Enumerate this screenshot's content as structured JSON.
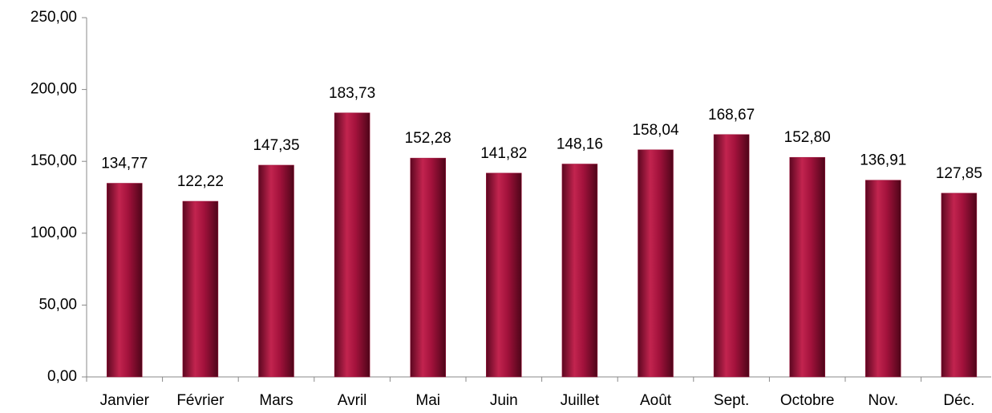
{
  "chart_data": {
    "type": "bar",
    "categories": [
      "Janvier",
      "Février",
      "Mars",
      "Avril",
      "Mai",
      "Juin",
      "Juillet",
      "Août",
      "Sept.",
      "Octobre",
      "Nov.",
      "Déc."
    ],
    "values": [
      134.77,
      122.22,
      147.35,
      183.73,
      152.28,
      141.82,
      148.16,
      158.04,
      168.67,
      152.8,
      136.91,
      127.85
    ],
    "value_labels": [
      "134,77",
      "122,22",
      "147,35",
      "183,73",
      "152,28",
      "141,82",
      "148,16",
      "158,04",
      "168,67",
      "152,80",
      "136,91",
      "127,85"
    ],
    "color": "#9e1038",
    "ylim": [
      0,
      250
    ],
    "yticks": [
      {
        "value": 0,
        "label": "0,00"
      },
      {
        "value": 50,
        "label": "50,00"
      },
      {
        "value": 100,
        "label": "100,00"
      },
      {
        "value": 150,
        "label": "150,00"
      },
      {
        "value": 200,
        "label": "200,00"
      },
      {
        "value": 250,
        "label": "250,00"
      }
    ],
    "grid": false
  }
}
